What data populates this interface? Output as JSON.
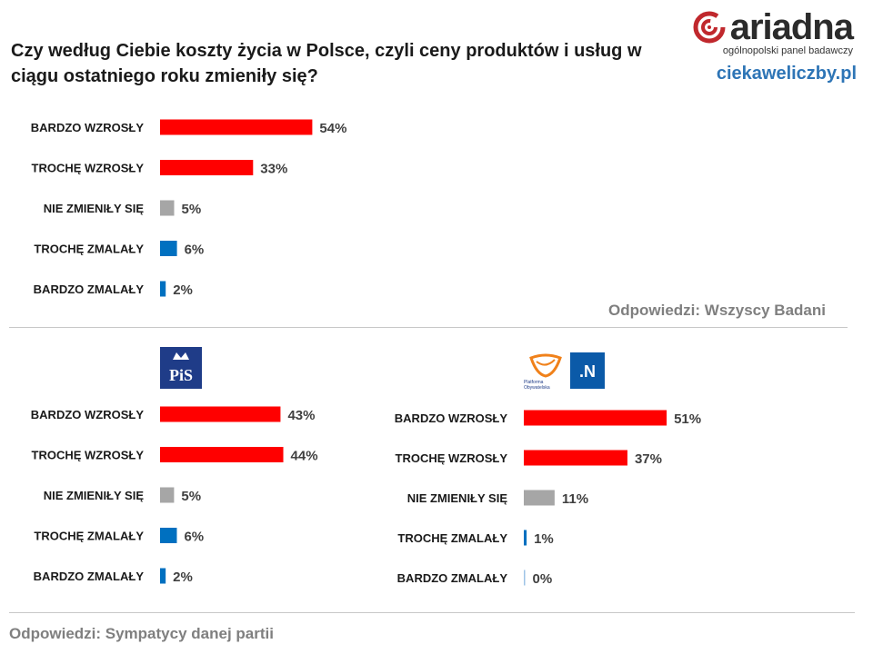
{
  "title": "Czy według Ciebie koszty życia w Polsce, czyli ceny produktów i usług w ciągu ostatniego roku zmieniły się?",
  "brand": {
    "name": "ariadna",
    "subtitle": "ogólnopolski panel badawczy",
    "site": "ciekaweliczby.pl"
  },
  "notes": {
    "all": "Odpowiedzi:  Wszyscy  Badani",
    "parties": "Odpowiedzi:  Sympatycy  danej  partii"
  },
  "logos": {
    "pis": "PiS",
    "po": "Platforma Obywatelska",
    "n": ".N"
  },
  "colors": {
    "increase": "#ff0000",
    "same": "#a6a6a6",
    "decrease": "#0070c0"
  },
  "chart_data": [
    {
      "type": "bar",
      "orientation": "horizontal",
      "group": "Wszyscy Badani",
      "categories": [
        "BARDZO WZROSŁY",
        "TROCHĘ WZROSŁY",
        "NIE ZMIENIŁY SIĘ",
        "TROCHĘ ZMALAŁY",
        "BARDZO ZMALAŁY"
      ],
      "values": [
        54,
        33,
        5,
        6,
        2
      ],
      "data_labels": [
        "54%",
        "33%",
        "5%",
        "6%",
        "2%"
      ],
      "bar_colors": [
        "#ff0000",
        "#ff0000",
        "#a6a6a6",
        "#0070c0",
        "#0070c0"
      ],
      "unit": "%"
    },
    {
      "type": "bar",
      "orientation": "horizontal",
      "group": "Sympatycy PiS",
      "categories": [
        "BARDZO WZROSŁY",
        "TROCHĘ WZROSŁY",
        "NIE ZMIENIŁY SIĘ",
        "TROCHĘ ZMALAŁY",
        "BARDZO ZMALAŁY"
      ],
      "values": [
        43,
        44,
        5,
        6,
        2
      ],
      "data_labels": [
        "43%",
        "44%",
        "5%",
        "6%",
        "2%"
      ],
      "bar_colors": [
        "#ff0000",
        "#ff0000",
        "#a6a6a6",
        "#0070c0",
        "#0070c0"
      ],
      "unit": "%"
    },
    {
      "type": "bar",
      "orientation": "horizontal",
      "group": "Sympatycy PO i .N",
      "categories": [
        "BARDZO WZROSŁY",
        "TROCHĘ WZROSŁY",
        "NIE ZMIENIŁY SIĘ",
        "TROCHĘ ZMALAŁY",
        "BARDZO ZMALAŁY"
      ],
      "values": [
        51,
        37,
        11,
        1,
        0
      ],
      "data_labels": [
        "51%",
        "37%",
        "11%",
        "1%",
        "0%"
      ],
      "bar_colors": [
        "#ff0000",
        "#ff0000",
        "#a6a6a6",
        "#0070c0",
        "#0070c0"
      ],
      "unit": "%"
    }
  ]
}
